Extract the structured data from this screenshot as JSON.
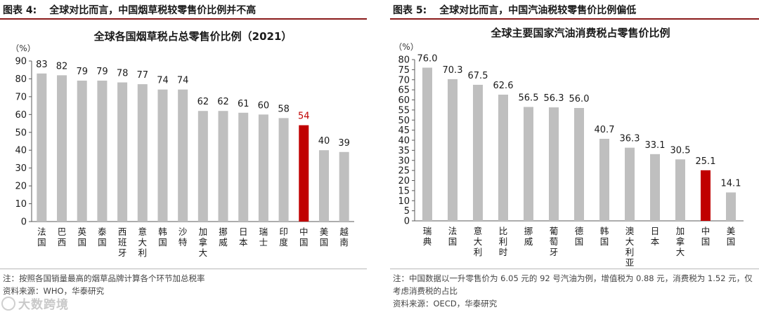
{
  "left": {
    "fig_num": "图表 4:",
    "fig_title": "全球对比而言，中国烟草税较零售价比例并不高",
    "note": "注：按照各国销量最高的烟草品牌计算各个环节加总税率",
    "source": "资料来源：WHO，华泰研究",
    "chart_data": {
      "type": "bar",
      "title": "全球各国烟草税占总零售价比例（2021）",
      "ylabel": "（%）",
      "ylim": [
        0,
        90
      ],
      "yticks": [
        0,
        10,
        20,
        30,
        40,
        50,
        60,
        70,
        80,
        90
      ],
      "grid": false,
      "categories": [
        "法国",
        "巴西",
        "英国",
        "泰国",
        "西班牙",
        "意大利",
        "韩国",
        "沙特",
        "加拿大",
        "挪威",
        "日本",
        "瑞士",
        "印度",
        "中国",
        "美国",
        "越南"
      ],
      "values": [
        83,
        82,
        79,
        79,
        78,
        77,
        74,
        74,
        62,
        62,
        61,
        60,
        58,
        54,
        40,
        39
      ],
      "value_labels": [
        "83",
        "82",
        "79",
        "79",
        "78",
        "77",
        "74",
        "74",
        "62",
        "62",
        "61",
        "60",
        "58",
        "54",
        "40",
        "39"
      ],
      "highlight_index": 13,
      "colors": {
        "bar": "#bfbfbf",
        "highlight": "#c00000",
        "label": "#1a1a1a",
        "highlight_label": "#c00000"
      }
    }
  },
  "right": {
    "fig_num": "图表 5:",
    "fig_title": "全球对比而言，中国汽油税较零售价比例偏低",
    "note": "注：中国数据以一升零售价为 6.05 元的 92 号汽油为例，增值税为 0.88 元，消费税为 1.52 元，仅考虑消费税的占比",
    "source": "资料来源：OECD，华泰研究",
    "chart_data": {
      "type": "bar",
      "title": "全球主要国家汽油消费税占零售价比例",
      "ylabel": "（%）",
      "ylim": [
        0,
        80
      ],
      "yticks": [
        0,
        5,
        10,
        15,
        20,
        25,
        30,
        35,
        40,
        45,
        50,
        55,
        60,
        65,
        70,
        75,
        80
      ],
      "grid": false,
      "categories": [
        "瑞典",
        "法国",
        "意大利",
        "比利时",
        "挪威",
        "葡萄牙",
        "德国",
        "韩国",
        "澳大利亚",
        "日本",
        "加拿大",
        "中国",
        "美国"
      ],
      "values": [
        76.0,
        70.3,
        67.5,
        62.6,
        56.5,
        56.3,
        56.0,
        40.7,
        36.3,
        33.1,
        30.5,
        25.1,
        14.1
      ],
      "value_labels": [
        "76.0",
        "70.3",
        "67.5",
        "62.6",
        "56.5",
        "56.3",
        "56.0",
        "40.7",
        "36.3",
        "33.1",
        "30.5",
        "25.1",
        "14.1"
      ],
      "highlight_index": 11,
      "colors": {
        "bar": "#bfbfbf",
        "highlight": "#c00000",
        "label": "#1a1a1a",
        "highlight_label": "#1a1a1a"
      }
    }
  },
  "watermark": "大数跨境",
  "watermark_icon": "circle-logo-icon"
}
